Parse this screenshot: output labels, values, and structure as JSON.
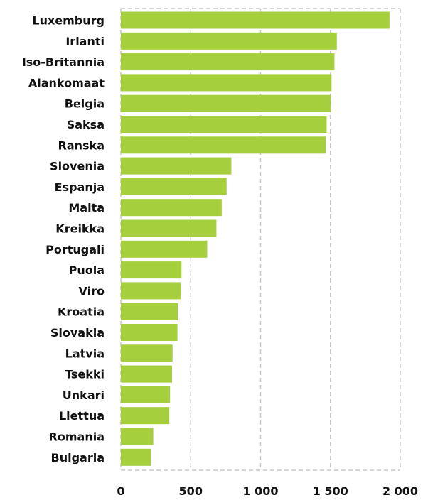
{
  "chart_data": {
    "type": "bar",
    "orientation": "horizontal",
    "title": "",
    "xlabel": "",
    "ylabel": "",
    "categories": [
      "Luxemburg",
      "Irlanti",
      "Iso-Britannia",
      "Alankomaat",
      "Belgia",
      "Saksa",
      "Ranska",
      "Slovenia",
      "Espanja",
      "Malta",
      "Kreikka",
      "Portugali",
      "Puola",
      "Viro",
      "Kroatia",
      "Slovakia",
      "Latvia",
      "Tsekki",
      "Unkari",
      "Liettua",
      "Romania",
      "Bulgaria"
    ],
    "values": [
      1923,
      1546,
      1529,
      1508,
      1502,
      1473,
      1466,
      791,
      757,
      722,
      684,
      618,
      434,
      429,
      408,
      405,
      370,
      366,
      352,
      347,
      232,
      215
    ],
    "xlim": [
      0,
      2000
    ],
    "xticks": [
      0,
      500,
      1000,
      1500,
      2000
    ],
    "xtick_labels": [
      "0",
      "500",
      "1 000",
      "1 500",
      "2 000"
    ],
    "grid": "vertical dashed",
    "colors": {
      "bar": "#a5cf3c",
      "grid": "#c8c8c8"
    }
  }
}
